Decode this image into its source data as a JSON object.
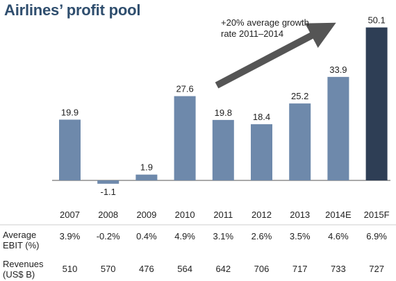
{
  "title": "Airlines’ profit pool",
  "annotation": [
    "+20% average growth",
    "rate 2011–2014"
  ],
  "chart_data": {
    "type": "bar",
    "title": "Airlines’ profit pool",
    "categories": [
      "2007",
      "2008",
      "2009",
      "2010",
      "2011",
      "2012",
      "2013",
      "2014E",
      "2015F"
    ],
    "values": [
      19.9,
      -1.1,
      1.9,
      27.6,
      19.8,
      18.4,
      25.2,
      33.9,
      50.1
    ],
    "value_labels": [
      "19.9",
      "-1.1",
      "1.9",
      "27.6",
      "19.8",
      "18.4",
      "25.2",
      "33.9",
      "50.1"
    ],
    "ylim": [
      -1.1,
      50.1
    ],
    "grid": false,
    "colors": {
      "default": "#6e89ab",
      "highlight": "#2e3e55"
    },
    "highlight_index": 8
  },
  "rows": [
    {
      "label": [
        "Average",
        "EBIT (%)"
      ],
      "values": [
        "3.9%",
        "-0.2%",
        "0.4%",
        "4.9%",
        "3.1%",
        "2.6%",
        "3.5%",
        "4.6%",
        "6.9%"
      ]
    },
    {
      "label": [
        "Revenues",
        "(US$ B)"
      ],
      "values": [
        "510",
        "570",
        "476",
        "564",
        "642",
        "706",
        "717",
        "733",
        "727"
      ]
    }
  ]
}
